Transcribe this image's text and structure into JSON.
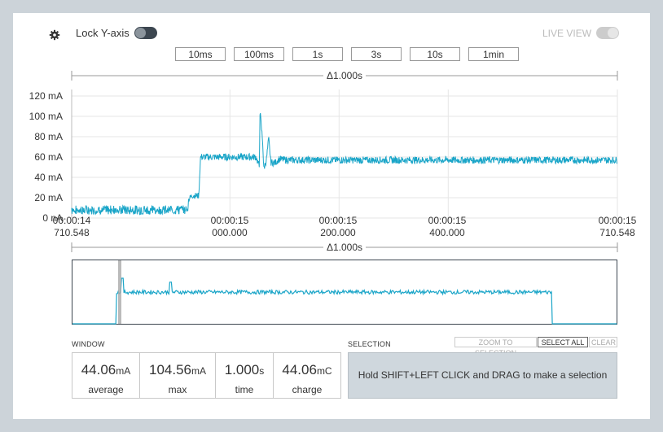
{
  "header": {
    "lock_label": "Lock Y-axis",
    "live_view_label": "LIVE VIEW",
    "lock_on": true,
    "live_view_on": false
  },
  "time_buttons": [
    "10ms",
    "100ms",
    "1s",
    "3s",
    "10s",
    "1min"
  ],
  "delta_top": "Δ1.000s",
  "delta_bottom": "Δ1.000s",
  "y_ticks": [
    "120 mA",
    "100 mA",
    "80 mA",
    "60 mA",
    "40 mA",
    "20 mA",
    "0 nA"
  ],
  "x_ticks": [
    {
      "time": "00:00:14",
      "sub": "710.548"
    },
    {
      "time": "00:00:15",
      "sub": "000.000"
    },
    {
      "time": "00:00:15",
      "sub": "200.000"
    },
    {
      "time": "00:00:15",
      "sub": "400.000"
    },
    {
      "time": "00:00:15",
      "sub": "710.548"
    }
  ],
  "window": {
    "title": "WINDOW",
    "stats": [
      {
        "value": "44.06",
        "unit": "mA",
        "label": "average"
      },
      {
        "value": "104.56",
        "unit": "mA",
        "label": "max"
      },
      {
        "value": "1.000",
        "unit": "s",
        "label": "time"
      },
      {
        "value": "44.06",
        "unit": "mC",
        "label": "charge"
      }
    ]
  },
  "selection": {
    "title": "SELECTION",
    "zoom_label": "ZOOM TO SELECTION",
    "select_all_label": "SELECT ALL",
    "clear_label": "CLEAR",
    "hint": "Hold SHIFT+LEFT CLICK and DRAG to make a selection"
  },
  "colors": {
    "trace": "#1aa5c8",
    "toggle_on": "#3c4650",
    "toggle_off": "#cccccc",
    "grid": "#e6e6e6",
    "selection_bg": "#cfd7dd"
  },
  "chart_data": [
    {
      "type": "line",
      "title": "",
      "xlabel": "",
      "ylabel": "",
      "ylim": [
        0,
        120
      ],
      "xlim_ms": [
        0,
        1000
      ],
      "y_unit": "mA",
      "x": [
        0,
        120,
        213,
        214,
        220,
        233,
        236,
        338,
        344,
        345,
        350,
        352,
        357,
        361,
        365,
        372,
        380,
        395,
        400,
        1000
      ],
      "y": [
        8,
        8,
        8,
        18,
        22,
        22,
        60,
        60,
        50,
        105,
        75,
        48,
        58,
        78,
        55,
        54,
        58,
        57,
        57,
        57
      ]
    },
    {
      "type": "area",
      "title": "",
      "note": "overview strip",
      "x": [
        0,
        0.08,
        0.09,
        0.88,
        0.885,
        1.0
      ],
      "y": [
        0,
        0,
        57,
        57,
        0,
        0
      ]
    }
  ]
}
